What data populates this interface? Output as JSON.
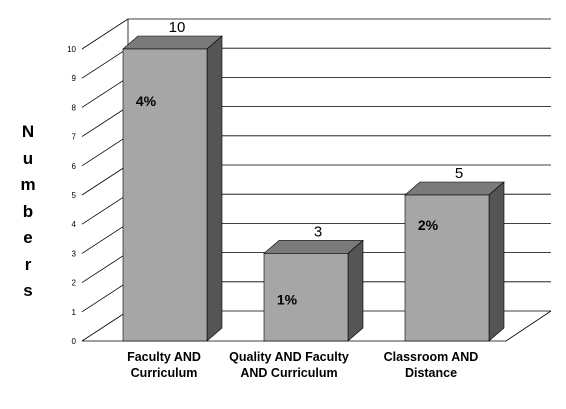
{
  "chart_data": {
    "type": "bar",
    "title": "",
    "xlabel": "",
    "ylabel": "Numbers",
    "ylim": [
      0,
      10
    ],
    "y_ticks": [
      "0",
      "1",
      "2",
      "3",
      "4",
      "5",
      "6",
      "7",
      "8",
      "9",
      "10"
    ],
    "grid": true,
    "style": "3d",
    "categories": [
      [
        "Faculty AND",
        "Curriculum"
      ],
      [
        "Quality AND Faculty",
        "AND Curriculum"
      ],
      [
        "Classroom AND",
        "Distance"
      ]
    ],
    "values": [
      10,
      3,
      5
    ],
    "value_labels": [
      "10",
      "3",
      "5"
    ],
    "inner_labels": [
      "4%",
      "1%",
      "2%"
    ],
    "colors": {
      "front": "#a6a6a6",
      "side": "#555555",
      "top": "#7a7a7a"
    }
  }
}
